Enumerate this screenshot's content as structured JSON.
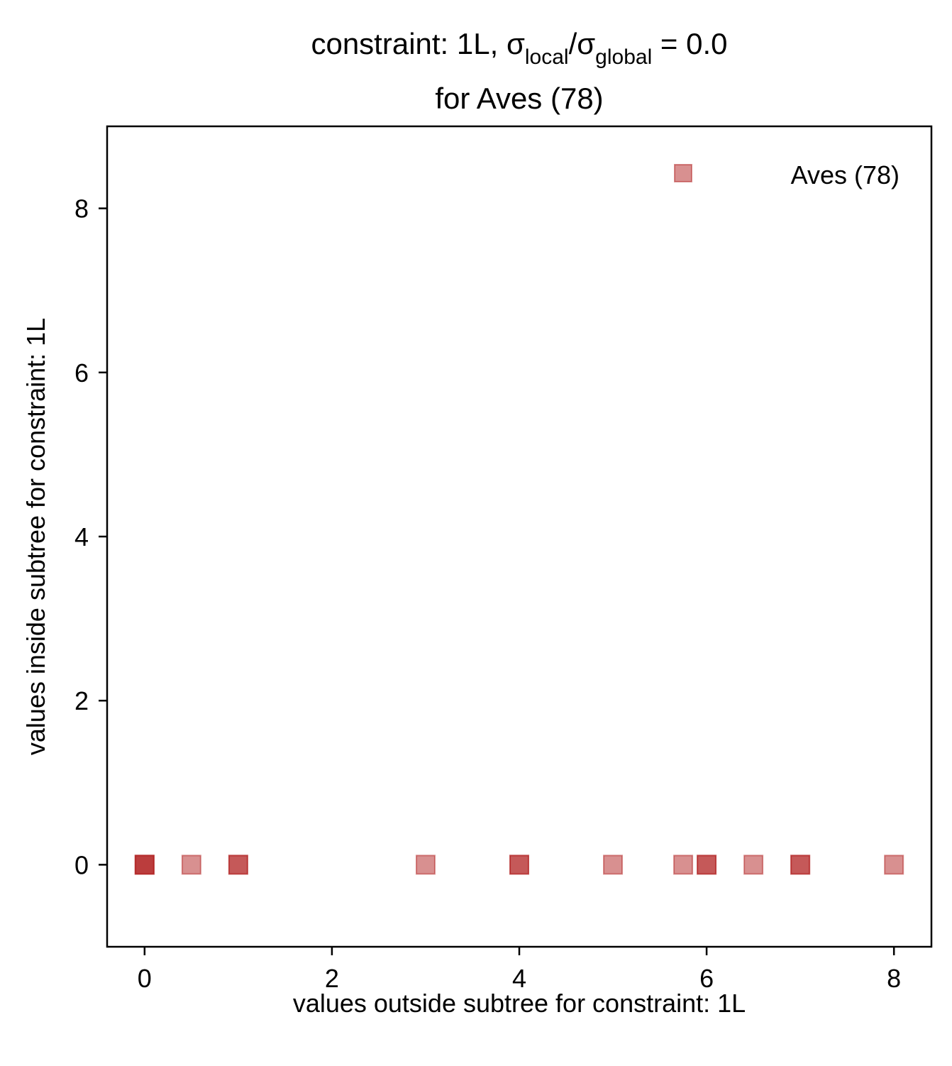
{
  "chart_data": {
    "type": "scatter",
    "title": {
      "line1_prefix": "constraint: 1L, σ",
      "sub1": "local",
      "slash": "/σ",
      "sub2": "global",
      "line1_suffix": " =  0.0",
      "line2": "for Aves (78)"
    },
    "xlabel": "values outside subtree for constraint: 1L",
    "ylabel": "values inside subtree for constraint: 1L",
    "xlim": [
      -0.4,
      8.4
    ],
    "ylim": [
      -1,
      9
    ],
    "xticks": [
      0,
      2,
      4,
      6,
      8
    ],
    "yticks": [
      0,
      2,
      4,
      6,
      8
    ],
    "xtick_labels": [
      "0",
      "2",
      "4",
      "6",
      "8"
    ],
    "ytick_labels": [
      "0",
      "2",
      "4",
      "6",
      "8"
    ],
    "grid": false,
    "legend_position": "top-right",
    "series": [
      {
        "name": "Aves (78)",
        "marker": "square",
        "color": "#b22222",
        "alpha": 0.5,
        "x": [
          0,
          0,
          0,
          0.5,
          1,
          1,
          3,
          4,
          4,
          5,
          5.75,
          6,
          6,
          6.5,
          7,
          7,
          8
        ],
        "y": [
          0,
          0,
          0,
          0,
          0,
          0,
          0,
          0,
          0,
          0,
          0,
          0,
          0,
          0,
          0,
          0,
          0
        ]
      }
    ]
  }
}
